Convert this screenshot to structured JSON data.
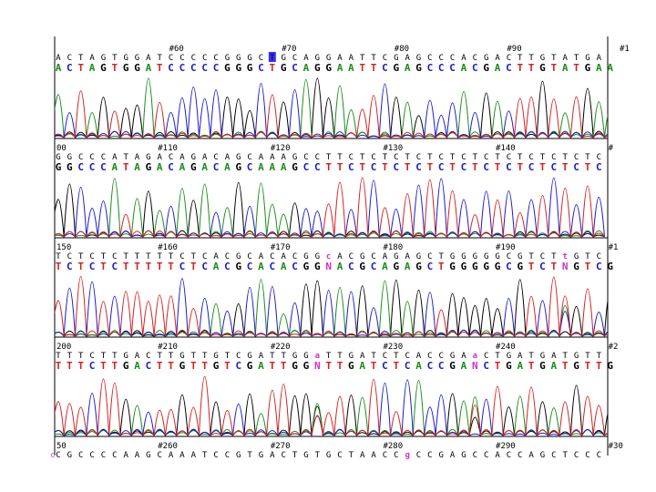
{
  "colors": {
    "A": "#1a8c1a",
    "C": "#1a1acc",
    "G": "#000000",
    "T": "#d42020",
    "N": "#cc33cc",
    "highlight": "#3333ff"
  },
  "panels": [
    {
      "markers": [
        {
          "label": "#60",
          "index": 10
        },
        {
          "label": "#70",
          "index": 20
        },
        {
          "label": "#80",
          "index": 30
        },
        {
          "label": "#90",
          "index": 40
        },
        {
          "label": "#1",
          "index": 50
        }
      ],
      "called": "ACTAGTGGATCCCCCGGGCTGCAGGAATTCGAGCCCACGACTTGTATGAA",
      "consensus": "ACTAGTGGATCCCCCGGGCTGCAGGAATTCGAGCCCACGACTTGTATGAA",
      "lead": ""
    },
    {
      "markers": [
        {
          "label": "00",
          "index": 0
        },
        {
          "label": "#110",
          "index": 9
        },
        {
          "label": "#120",
          "index": 19
        },
        {
          "label": "#130",
          "index": 29
        },
        {
          "label": "#140",
          "index": 39
        },
        {
          "label": "#",
          "index": 49
        }
      ],
      "called": "GGCCCATAGACAGACAGCAAAGCCTTCTCTCTCTCTCTCTCTCTCTCTC",
      "consensus": "GGCCCATAGACAGACAGCAAAGCCTTCTCTCTCTCTCTCTCTCTCTCTC",
      "lead": ""
    },
    {
      "markers": [
        {
          "label": "150",
          "index": 0
        },
        {
          "label": "#160",
          "index": 9
        },
        {
          "label": "#170",
          "index": 19
        },
        {
          "label": "#180",
          "index": 29
        },
        {
          "label": "#190",
          "index": 39
        },
        {
          "label": "#1",
          "index": 49
        }
      ],
      "called": "TCTCTCTTTTTCTCACGCACACGGcACGCAGAGCTGGGGGCGTCTtGTCG",
      "consensus": "TCTCTCTTTTTCTCACGCACACGGNACGCAGAGCTGGGGGCGTCTNGTCG",
      "lead": ""
    },
    {
      "markers": [
        {
          "label": "200",
          "index": 0
        },
        {
          "label": "#210",
          "index": 9
        },
        {
          "label": "#220",
          "index": 19
        },
        {
          "label": "#230",
          "index": 29
        },
        {
          "label": "#240",
          "index": 39
        },
        {
          "label": "#2",
          "index": 49
        }
      ],
      "called": "TTTCTTGACTTGTTGTCGATTGGaTTGATCTCACCGAaCTGATGATGTTG",
      "consensus": "TTTCTTGACTTGTTGTCGATTGGNTTGATCTCACCGANCTGATGATGTTG",
      "lead": ""
    },
    {
      "markers": [
        {
          "label": "50",
          "index": 0
        },
        {
          "label": "#260",
          "index": 9
        },
        {
          "label": "#270",
          "index": 19
        },
        {
          "label": "#280",
          "index": 29
        },
        {
          "label": "#290",
          "index": 39
        },
        {
          "label": "#30",
          "index": 49
        }
      ],
      "called": "CGCCCCAAGCAAATCCGTGACTGTGCTAACCgCCGAGCCACCAGCTCCC",
      "consensus": "",
      "lead": "c"
    }
  ]
}
